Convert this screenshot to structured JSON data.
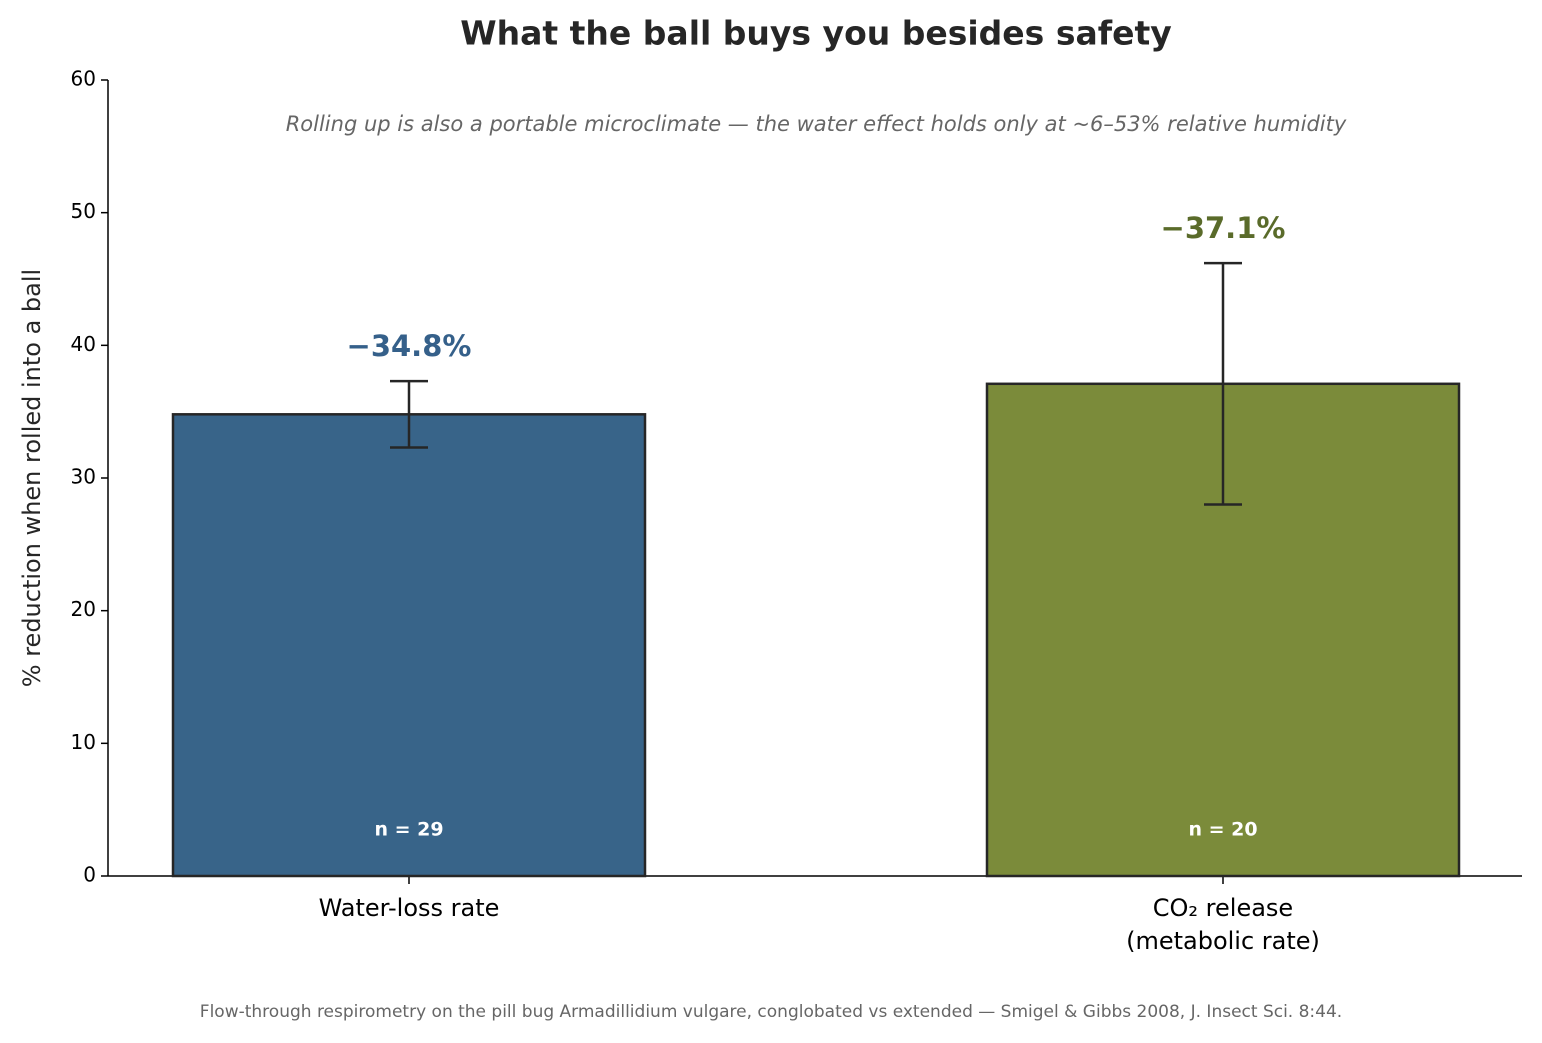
{
  "chart_data": {
    "type": "bar",
    "title": "What the ball buys you besides safety",
    "subtitle": "Rolling up is also a portable microclimate — the water effect holds only at ~6–53% relative humidity",
    "y_label": "% reduction when rolled into a ball",
    "source": "Flow-through respirometry on the pill bug Armadillidium vulgare, conglobated vs extended — Smigel & Gibbs 2008, J. Insect Sci. 8:44.",
    "categories": [
      "Water-loss rate",
      "CO₂ release\n(metabolic rate)"
    ],
    "values": [
      34.8,
      37.1
    ],
    "value_labels": [
      "−34.8%",
      "−37.1%"
    ],
    "errors": [
      2.5,
      9.1
    ],
    "sample_labels": [
      "n = 29",
      "n = 20"
    ],
    "colors": [
      "#386489",
      "#7b8b3a"
    ],
    "label_colors": [
      "#35608a",
      "#5a6b2a"
    ],
    "ylim": [
      0,
      60
    ],
    "yticks": [
      0,
      10,
      20,
      30,
      40,
      50,
      60
    ],
    "grid": false
  }
}
